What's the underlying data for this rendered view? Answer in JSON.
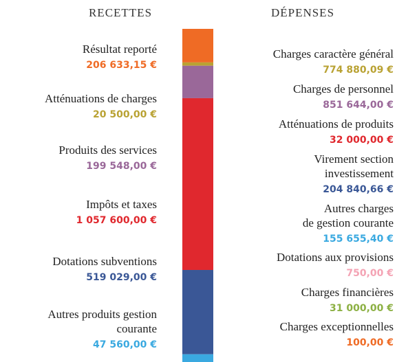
{
  "headings": {
    "recettes": "RECETTES",
    "depenses": "DÉPENSES"
  },
  "recettes": [
    {
      "lines": [
        "Résultat reporté"
      ],
      "value": 206633.15,
      "value_label": "206 633,15 €",
      "color": "#ef6b25"
    },
    {
      "lines": [
        "Atténuations de charges"
      ],
      "value": 20500,
      "value_label": "20 500,00 €",
      "color": "#b9a233"
    },
    {
      "lines": [
        "Produits des services"
      ],
      "value": 199548,
      "value_label": "199 548,00 €",
      "color": "#9a6899"
    },
    {
      "lines": [
        "Impôts et taxes"
      ],
      "value": 1057600,
      "value_label": "1 057 600,00 €",
      "color": "#e0282e"
    },
    {
      "lines": [
        "Dotations subventions"
      ],
      "value": 519029,
      "value_label": "519 029,00 €",
      "color": "#3a5796"
    },
    {
      "lines": [
        "Autres produits gestion",
        "courante"
      ],
      "value": 47560,
      "value_label": "47 560,00 €",
      "color": "#3aa9e0"
    }
  ],
  "depenses": [
    {
      "lines": [
        "Charges caractère général"
      ],
      "value_label": "774 880,09 €",
      "color": "#b9a233"
    },
    {
      "lines": [
        "Charges de personnel"
      ],
      "value_label": "851 644,00 €",
      "color": "#9a6899"
    },
    {
      "lines": [
        "Atténuations de produits"
      ],
      "value_label": "32 000,00 €",
      "color": "#e0282e"
    },
    {
      "lines": [
        "Virement section",
        "investissement"
      ],
      "value_label": "204 840,66 €",
      "color": "#3a5796"
    },
    {
      "lines": [
        "Autres charges",
        "de gestion courante"
      ],
      "value_label": "155 655,40 €",
      "color": "#3aa9e0"
    },
    {
      "lines": [
        "Dotations aux provisions"
      ],
      "value_label": "750,00 €",
      "color": "#f4a3b4"
    },
    {
      "lines": [
        "Charges financières"
      ],
      "value_label": "31 000,00 €",
      "color": "#8cb043"
    },
    {
      "lines": [
        "Charges exceptionnelles"
      ],
      "value_label": "100,00 €",
      "color": "#ef6b25"
    }
  ]
}
